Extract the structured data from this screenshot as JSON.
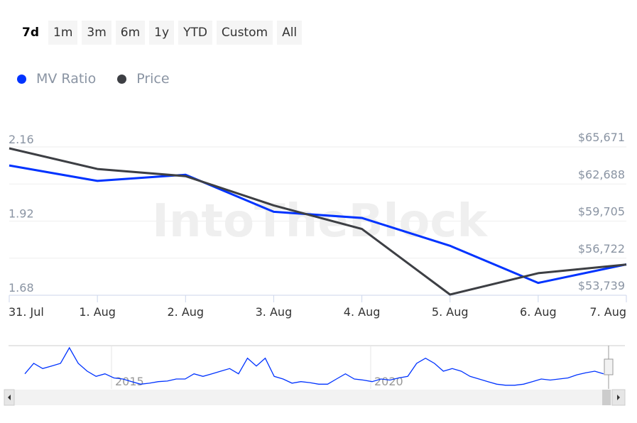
{
  "range_selector": {
    "buttons": [
      "7d",
      "1m",
      "3m",
      "6m",
      "1y",
      "YTD",
      "Custom",
      "All"
    ],
    "active": "7d"
  },
  "legend": [
    {
      "label": "MV Ratio",
      "color": "#0033ff"
    },
    {
      "label": "Price",
      "color": "#3d3f44"
    }
  ],
  "watermark": "IntoTheBlock",
  "chart_data": {
    "type": "line",
    "x": [
      "31. Jul",
      "1. Aug",
      "2. Aug",
      "3. Aug",
      "4. Aug",
      "5. Aug",
      "6. Aug",
      "7. Aug"
    ],
    "series": [
      {
        "name": "MV Ratio",
        "axis": "left",
        "color": "#0033ff",
        "values": [
          2.1,
          2.05,
          2.07,
          1.95,
          1.93,
          1.84,
          1.72,
          1.78
        ]
      },
      {
        "name": "Price",
        "axis": "right",
        "color": "#3d3f44",
        "values": [
          65556,
          63893,
          63319,
          60967,
          59074,
          53796,
          55517,
          56206
        ]
      }
    ],
    "left_axis": {
      "ticks": [
        "2.16",
        "1.92",
        "1.68"
      ],
      "range": [
        1.68,
        2.16
      ]
    },
    "right_axis": {
      "ticks": [
        "$65,671",
        "$62,688",
        "$59,705",
        "$56,722",
        "$53,739"
      ],
      "range": [
        53739,
        65671
      ]
    },
    "grid": true,
    "legend_placement": "top-left",
    "navigator": {
      "labels": [
        "2015",
        "2020"
      ],
      "color": "#0033ff",
      "values": [
        1.8,
        2.0,
        1.9,
        1.95,
        2.0,
        2.3,
        2.0,
        1.85,
        1.75,
        1.8,
        1.72,
        1.7,
        1.65,
        1.6,
        1.62,
        1.65,
        1.66,
        1.7,
        1.7,
        1.8,
        1.75,
        1.8,
        1.85,
        1.9,
        1.8,
        2.1,
        1.95,
        2.1,
        1.75,
        1.7,
        1.62,
        1.65,
        1.63,
        1.6,
        1.6,
        1.7,
        1.8,
        1.7,
        1.68,
        1.65,
        1.7,
        1.68,
        1.72,
        1.75,
        2.0,
        2.1,
        2.0,
        1.85,
        1.9,
        1.85,
        1.75,
        1.7,
        1.65,
        1.6,
        1.58,
        1.58,
        1.6,
        1.65,
        1.7,
        1.68,
        1.7,
        1.72,
        1.78,
        1.82,
        1.85,
        1.8
      ]
    }
  }
}
